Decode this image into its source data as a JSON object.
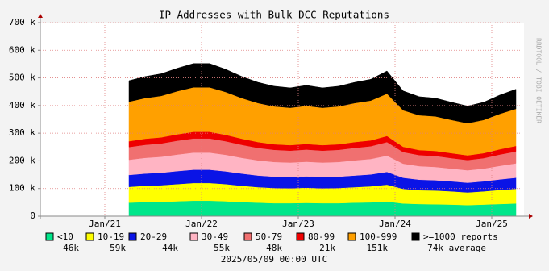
{
  "chart_data": {
    "type": "stacked_area",
    "title": "IP Addresses with Bulk DCC Reputations",
    "watermark": "RRDTOOL / TOBI OETIKER",
    "footer": "2025/05/09 00:00 UTC",
    "x": [
      "2021-04",
      "2021-06",
      "2021-08",
      "2021-10",
      "2021-12",
      "2022-02",
      "2022-04",
      "2022-06",
      "2022-08",
      "2022-10",
      "2022-12",
      "2023-02",
      "2023-04",
      "2023-06",
      "2023-08",
      "2023-10",
      "2023-12",
      "2024-02",
      "2024-04",
      "2024-06",
      "2024-08",
      "2024-10",
      "2024-12",
      "2025-02",
      "2025-04"
    ],
    "xlim": [
      "2020-05",
      "2025-05"
    ],
    "xticks": [
      {
        "value": "2021-01",
        "label": "Jan/21"
      },
      {
        "value": "2022-01",
        "label": "Jan/22"
      },
      {
        "value": "2023-01",
        "label": "Jan/23"
      },
      {
        "value": "2024-01",
        "label": "Jan/24"
      },
      {
        "value": "2025-01",
        "label": "Jan/25"
      }
    ],
    "ylim": [
      0,
      700
    ],
    "yticks": [
      {
        "value": 0,
        "label": "0"
      },
      {
        "value": 100,
        "label": "100 k"
      },
      {
        "value": 200,
        "label": "200 k"
      },
      {
        "value": 300,
        "label": "300 k"
      },
      {
        "value": 400,
        "label": "400 k"
      },
      {
        "value": 500,
        "label": "500 k"
      },
      {
        "value": 600,
        "label": "600 k"
      },
      {
        "value": 700,
        "label": "700 k"
      }
    ],
    "grid": true,
    "series": [
      {
        "name": "<10",
        "color": "#00e68a",
        "average": {
          "value": 46,
          "label": "46k"
        },
        "values": [
          49,
          51,
          52,
          54,
          56,
          56,
          54,
          51,
          49,
          47,
          47,
          48,
          47,
          47,
          49,
          50,
          53,
          46,
          44,
          43,
          42,
          40,
          42,
          44,
          46
        ]
      },
      {
        "name": "10-19",
        "color": "#ffff00",
        "average": {
          "value": 59,
          "label": "59k"
        },
        "values": [
          57,
          59,
          60,
          62,
          64,
          64,
          62,
          59,
          56,
          55,
          54,
          55,
          54,
          55,
          56,
          58,
          61,
          53,
          50,
          50,
          48,
          46,
          48,
          51,
          53
        ]
      },
      {
        "name": "20-29",
        "color": "#0a14e6",
        "average": {
          "value": 44,
          "label": "44k"
        },
        "values": [
          43,
          44,
          45,
          47,
          48,
          48,
          46,
          44,
          42,
          41,
          41,
          41,
          41,
          41,
          42,
          43,
          46,
          40,
          38,
          37,
          36,
          35,
          36,
          38,
          40
        ]
      },
      {
        "name": "30-49",
        "color": "#ffb4c3",
        "average": {
          "value": 55,
          "label": "55k"
        },
        "values": [
          55,
          57,
          58,
          60,
          62,
          62,
          60,
          57,
          55,
          53,
          52,
          53,
          52,
          53,
          55,
          56,
          59,
          51,
          49,
          48,
          46,
          45,
          46,
          49,
          52
        ]
      },
      {
        "name": "50-79",
        "color": "#f07070",
        "average": {
          "value": 48,
          "label": "48k"
        },
        "values": [
          46,
          47,
          48,
          50,
          51,
          51,
          49,
          47,
          45,
          44,
          43,
          44,
          43,
          44,
          45,
          46,
          49,
          42,
          40,
          40,
          38,
          37,
          38,
          41,
          43
        ]
      },
      {
        "name": "80-99",
        "color": "#ee0000",
        "average": {
          "value": 21,
          "label": "21k"
        },
        "values": [
          21,
          22,
          22,
          23,
          24,
          24,
          23,
          22,
          21,
          20,
          20,
          20,
          20,
          20,
          21,
          21,
          22,
          19,
          18,
          18,
          18,
          17,
          18,
          19,
          20
        ]
      },
      {
        "name": "100-999",
        "color": "#ffa000",
        "average": {
          "value": 151,
          "label": "151k"
        },
        "values": [
          143,
          147,
          150,
          156,
          161,
          161,
          155,
          147,
          141,
          137,
          135,
          138,
          135,
          137,
          141,
          144,
          153,
          132,
          126,
          125,
          120,
          116,
          120,
          128,
          134
        ]
      },
      {
        "name": ">=1000 reports",
        "color": "#000000",
        "average": {
          "value": 74,
          "label": "74k average"
        },
        "values": [
          76,
          78,
          80,
          83,
          86,
          86,
          82,
          78,
          75,
          73,
          72,
          74,
          72,
          73,
          75,
          77,
          82,
          70,
          67,
          66,
          64,
          62,
          64,
          68,
          71
        ]
      }
    ]
  }
}
